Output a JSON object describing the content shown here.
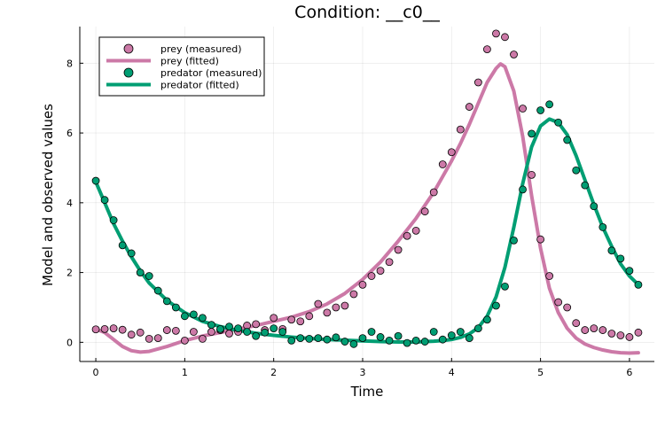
{
  "chart_data": {
    "type": "scatter",
    "title": "Condition: __c0__",
    "xlabel": "Time",
    "ylabel": "Model and observed values",
    "xlim": [
      -0.18,
      6.28
    ],
    "ylim": [
      -0.55,
      9.05
    ],
    "xticks": [
      0,
      1,
      2,
      3,
      4,
      5,
      6
    ],
    "yticks": [
      0,
      2,
      4,
      6,
      8
    ],
    "grid": true,
    "legend_position": "top-left",
    "series": [
      {
        "name": "prey (measured)",
        "kind": "scatter",
        "color": "#CC79A7",
        "x": [
          0.0,
          0.1,
          0.2,
          0.3,
          0.4,
          0.5,
          0.6,
          0.7,
          0.8,
          0.9,
          1.0,
          1.1,
          1.2,
          1.3,
          1.4,
          1.5,
          1.6,
          1.7,
          1.8,
          1.9,
          2.0,
          2.1,
          2.2,
          2.3,
          2.4,
          2.5,
          2.6,
          2.7,
          2.8,
          2.9,
          3.0,
          3.1,
          3.2,
          3.3,
          3.4,
          3.5,
          3.6,
          3.7,
          3.8,
          3.9,
          4.0,
          4.1,
          4.2,
          4.3,
          4.4,
          4.5,
          4.6,
          4.7,
          4.8,
          4.9,
          5.0,
          5.1,
          5.2,
          5.3,
          5.4,
          5.5,
          5.6,
          5.7,
          5.8,
          5.9,
          6.0,
          6.1
        ],
        "y": [
          0.37,
          0.38,
          0.4,
          0.36,
          0.22,
          0.28,
          0.1,
          0.12,
          0.35,
          0.33,
          0.05,
          0.3,
          0.1,
          0.3,
          0.35,
          0.25,
          0.3,
          0.48,
          0.52,
          0.35,
          0.7,
          0.38,
          0.65,
          0.6,
          0.75,
          1.1,
          0.85,
          1.0,
          1.05,
          1.38,
          1.65,
          1.9,
          2.05,
          2.3,
          2.65,
          3.05,
          3.2,
          3.75,
          4.3,
          5.1,
          5.45,
          6.1,
          6.75,
          7.45,
          8.4,
          8.85,
          8.75,
          8.25,
          6.7,
          4.8,
          2.95,
          1.9,
          1.15,
          1.0,
          0.55,
          0.35,
          0.4,
          0.35,
          0.25,
          0.2,
          0.15,
          0.28
        ]
      },
      {
        "name": "prey (fitted)",
        "kind": "line",
        "color": "#CC79A7",
        "x": [
          0.0,
          0.1,
          0.2,
          0.3,
          0.4,
          0.5,
          0.6,
          0.8,
          1.0,
          1.2,
          1.4,
          1.6,
          1.8,
          2.0,
          2.2,
          2.4,
          2.6,
          2.8,
          3.0,
          3.2,
          3.4,
          3.6,
          3.8,
          4.0,
          4.1,
          4.2,
          4.3,
          4.4,
          4.5,
          4.55,
          4.6,
          4.7,
          4.8,
          4.9,
          5.0,
          5.1,
          5.2,
          5.3,
          5.4,
          5.5,
          5.6,
          5.7,
          5.8,
          5.9,
          6.0,
          6.1
        ],
        "y": [
          0.38,
          0.28,
          0.08,
          -0.12,
          -0.24,
          -0.28,
          -0.26,
          -0.12,
          0.05,
          0.18,
          0.28,
          0.38,
          0.48,
          0.6,
          0.72,
          0.88,
          1.1,
          1.4,
          1.8,
          2.3,
          2.9,
          3.55,
          4.3,
          5.2,
          5.7,
          6.25,
          6.85,
          7.45,
          7.85,
          7.98,
          7.9,
          7.2,
          5.9,
          4.2,
          2.7,
          1.55,
          0.85,
          0.4,
          0.12,
          -0.05,
          -0.15,
          -0.22,
          -0.27,
          -0.3,
          -0.31,
          -0.3
        ]
      },
      {
        "name": "predator (measured)",
        "kind": "scatter",
        "color": "#009E73",
        "x": [
          0.0,
          0.1,
          0.2,
          0.3,
          0.4,
          0.5,
          0.6,
          0.7,
          0.8,
          0.9,
          1.0,
          1.1,
          1.2,
          1.3,
          1.4,
          1.5,
          1.6,
          1.7,
          1.8,
          1.9,
          2.0,
          2.1,
          2.2,
          2.3,
          2.4,
          2.5,
          2.6,
          2.7,
          2.8,
          2.9,
          3.0,
          3.1,
          3.2,
          3.3,
          3.4,
          3.5,
          3.6,
          3.7,
          3.8,
          3.9,
          4.0,
          4.1,
          4.2,
          4.3,
          4.4,
          4.5,
          4.6,
          4.7,
          4.8,
          4.9,
          5.0,
          5.1,
          5.2,
          5.3,
          5.4,
          5.5,
          5.6,
          5.7,
          5.8,
          5.9,
          6.0,
          6.1
        ],
        "y": [
          4.63,
          4.08,
          3.5,
          2.78,
          2.55,
          2.0,
          1.9,
          1.48,
          1.18,
          1.0,
          0.75,
          0.8,
          0.7,
          0.5,
          0.38,
          0.45,
          0.4,
          0.3,
          0.18,
          0.28,
          0.4,
          0.3,
          0.05,
          0.12,
          0.1,
          0.12,
          0.08,
          0.14,
          0.02,
          -0.05,
          0.12,
          0.3,
          0.15,
          0.05,
          0.18,
          -0.02,
          0.05,
          0.02,
          0.3,
          0.08,
          0.2,
          0.3,
          0.12,
          0.4,
          0.65,
          1.05,
          1.6,
          2.92,
          4.38,
          5.98,
          6.65,
          6.82,
          6.3,
          5.8,
          4.93,
          4.5,
          3.9,
          3.3,
          2.63,
          2.4,
          2.05,
          1.65
        ]
      },
      {
        "name": "predator (fitted)",
        "kind": "line",
        "color": "#009E73",
        "x": [
          0.0,
          0.1,
          0.2,
          0.3,
          0.4,
          0.5,
          0.6,
          0.8,
          1.0,
          1.2,
          1.4,
          1.6,
          1.8,
          2.0,
          2.2,
          2.4,
          2.6,
          2.8,
          3.0,
          3.2,
          3.4,
          3.6,
          3.8,
          3.9,
          4.0,
          4.1,
          4.2,
          4.3,
          4.4,
          4.5,
          4.6,
          4.7,
          4.8,
          4.9,
          5.0,
          5.1,
          5.2,
          5.3,
          5.4,
          5.5,
          5.6,
          5.7,
          5.8,
          5.9,
          6.0,
          6.1
        ],
        "y": [
          4.6,
          4.0,
          3.4,
          2.9,
          2.45,
          2.05,
          1.7,
          1.2,
          0.85,
          0.6,
          0.45,
          0.34,
          0.26,
          0.2,
          0.15,
          0.11,
          0.08,
          0.06,
          0.04,
          0.02,
          0.01,
          0.01,
          0.03,
          0.05,
          0.08,
          0.14,
          0.24,
          0.42,
          0.75,
          1.3,
          2.15,
          3.3,
          4.55,
          5.6,
          6.2,
          6.4,
          6.3,
          5.95,
          5.35,
          4.65,
          3.95,
          3.3,
          2.75,
          2.25,
          1.9,
          1.65
        ]
      }
    ]
  }
}
